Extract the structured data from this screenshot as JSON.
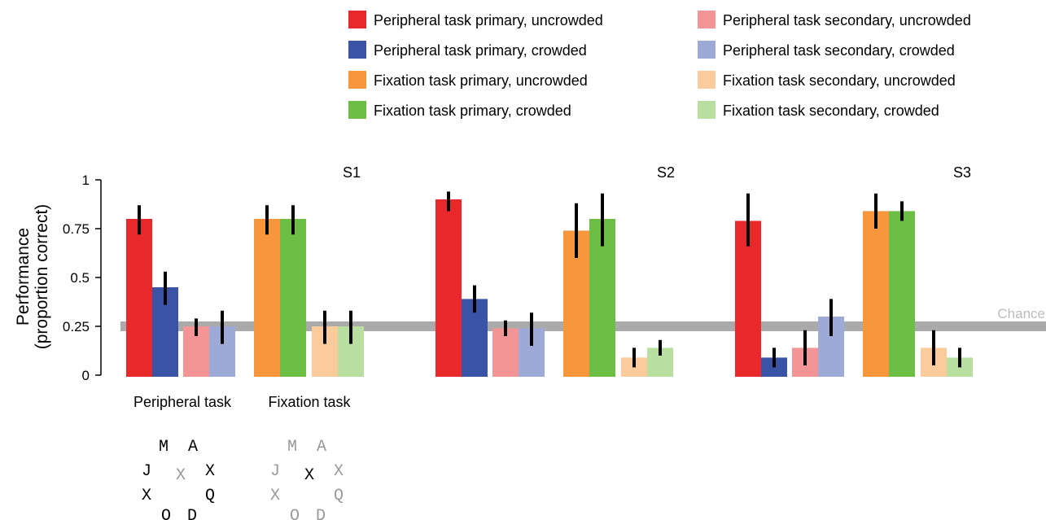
{
  "chart_data": {
    "type": "bar",
    "ylabel_line1": "Performance",
    "ylabel_line2": "(proportion correct)",
    "ylim": [
      0,
      1
    ],
    "yticks": [
      {
        "value": 0,
        "label": "0"
      },
      {
        "value": 0.25,
        "label": "0.25"
      },
      {
        "value": 0.5,
        "label": "0.5"
      },
      {
        "value": 0.75,
        "label": "0.75"
      },
      {
        "value": 1,
        "label": "1"
      }
    ],
    "chance": {
      "value": 0.25,
      "label": "Chance"
    },
    "group_labels": {
      "peripheral": "Peripheral task",
      "fixation": "Fixation task"
    },
    "legend": [
      {
        "key": "pp_u",
        "label": "Peripheral task primary, uncrowded",
        "color": "#E8282B"
      },
      {
        "key": "pp_c",
        "label": "Peripheral task primary, crowded",
        "color": "#3B53A4"
      },
      {
        "key": "fp_u",
        "label": "Fixation task primary, uncrowded",
        "color": "#F7963A"
      },
      {
        "key": "fp_c",
        "label": "Fixation task primary, crowded",
        "color": "#6DBE45"
      },
      {
        "key": "ps_u",
        "label": "Peripheral task secondary, uncrowded",
        "color": "#F39596"
      },
      {
        "key": "ps_c",
        "label": "Peripheral task secondary, crowded",
        "color": "#9DAAD6"
      },
      {
        "key": "fs_u",
        "label": "Fixation task secondary, uncrowded",
        "color": "#FBCB9C"
      },
      {
        "key": "fs_c",
        "label": "Fixation task secondary, crowded",
        "color": "#B8DF9F"
      }
    ],
    "subjects": [
      {
        "name": "S1",
        "peripheral": [
          {
            "key": "pp_u",
            "value": 0.8,
            "err": [
              0.72,
              0.87
            ]
          },
          {
            "key": "pp_c",
            "value": 0.45,
            "err": [
              0.36,
              0.53
            ]
          },
          {
            "key": "ps_u",
            "value": 0.25,
            "err": [
              0.2,
              0.29
            ]
          },
          {
            "key": "ps_c",
            "value": 0.25,
            "err": [
              0.16,
              0.33
            ]
          }
        ],
        "fixation": [
          {
            "key": "fp_u",
            "value": 0.8,
            "err": [
              0.72,
              0.87
            ]
          },
          {
            "key": "fp_c",
            "value": 0.8,
            "err": [
              0.72,
              0.87
            ]
          },
          {
            "key": "fs_u",
            "value": 0.25,
            "err": [
              0.16,
              0.33
            ]
          },
          {
            "key": "fs_c",
            "value": 0.25,
            "err": [
              0.16,
              0.33
            ]
          }
        ]
      },
      {
        "name": "S2",
        "peripheral": [
          {
            "key": "pp_u",
            "value": 0.9,
            "err": [
              0.84,
              0.94
            ]
          },
          {
            "key": "pp_c",
            "value": 0.39,
            "err": [
              0.32,
              0.46
            ]
          },
          {
            "key": "ps_u",
            "value": 0.24,
            "err": [
              0.2,
              0.28
            ]
          },
          {
            "key": "ps_c",
            "value": 0.24,
            "err": [
              0.15,
              0.32
            ]
          }
        ],
        "fixation": [
          {
            "key": "fp_u",
            "value": 0.74,
            "err": [
              0.6,
              0.88
            ]
          },
          {
            "key": "fp_c",
            "value": 0.8,
            "err": [
              0.66,
              0.93
            ]
          },
          {
            "key": "fs_u",
            "value": 0.09,
            "err": [
              0.04,
              0.14
            ]
          },
          {
            "key": "fs_c",
            "value": 0.14,
            "err": [
              0.1,
              0.18
            ]
          }
        ]
      },
      {
        "name": "S3",
        "peripheral": [
          {
            "key": "pp_u",
            "value": 0.79,
            "err": [
              0.66,
              0.93
            ]
          },
          {
            "key": "pp_c",
            "value": 0.09,
            "err": [
              0.04,
              0.14
            ]
          },
          {
            "key": "ps_u",
            "value": 0.14,
            "err": [
              0.05,
              0.23
            ]
          },
          {
            "key": "ps_c",
            "value": 0.3,
            "err": [
              0.2,
              0.39
            ]
          }
        ],
        "fixation": [
          {
            "key": "fp_u",
            "value": 0.84,
            "err": [
              0.75,
              0.93
            ]
          },
          {
            "key": "fp_c",
            "value": 0.84,
            "err": [
              0.79,
              0.89
            ]
          },
          {
            "key": "fs_u",
            "value": 0.14,
            "err": [
              0.05,
              0.23
            ]
          },
          {
            "key": "fs_c",
            "value": 0.09,
            "err": [
              0.04,
              0.14
            ]
          }
        ]
      }
    ],
    "stimuli": {
      "peripheral": {
        "letters": [
          "M",
          "A",
          "J",
          "X",
          "X",
          "X",
          "Q",
          "O",
          "D"
        ],
        "center_color": "#999999",
        "flanker_color": "#000000"
      },
      "fixation": {
        "letters": [
          "M",
          "A",
          "J",
          "X",
          "X",
          "X",
          "Q",
          "O",
          "D"
        ],
        "center_color": "#000000",
        "flanker_color": "#999999"
      }
    }
  }
}
